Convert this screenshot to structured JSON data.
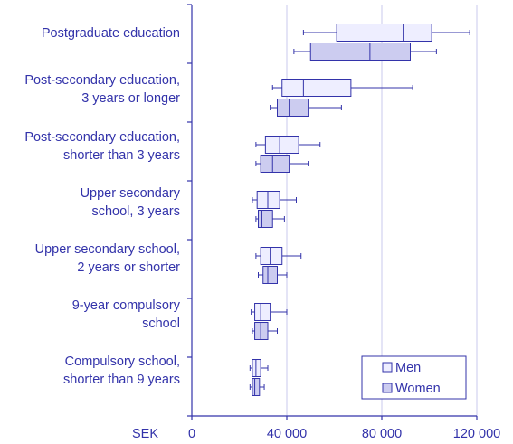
{
  "chart_data": {
    "type": "box",
    "orientation": "horizontal",
    "x_unit_label": "SEK",
    "xlim": [
      0,
      120000
    ],
    "x_ticks": [
      0,
      40000,
      80000,
      120000
    ],
    "x_tick_labels": [
      "0",
      "40 000",
      "80 000",
      "120 000"
    ],
    "grid": "vertical",
    "legend_position": "bottom-right",
    "categories": [
      [
        "Postgraduate education"
      ],
      [
        "Post-secondary education,",
        "3 years or longer"
      ],
      [
        "Post-secondary education,",
        "shorter than 3 years"
      ],
      [
        "Upper secondary",
        "school, 3 years"
      ],
      [
        "Upper secondary school,",
        "2 years or shorter"
      ],
      [
        "9-year compulsory",
        "school"
      ],
      [
        "Compulsory school,",
        "shorter than 9 years"
      ]
    ],
    "series": [
      {
        "name": "Men",
        "color": "#eeeeff",
        "boxes": [
          {
            "min": 47000,
            "q1": 61000,
            "median": 89000,
            "q3": 101000,
            "max": 117000
          },
          {
            "min": 34000,
            "q1": 38000,
            "median": 47000,
            "q3": 67000,
            "max": 93000
          },
          {
            "min": 27000,
            "q1": 31000,
            "median": 37000,
            "q3": 45000,
            "max": 54000
          },
          {
            "min": 25500,
            "q1": 27500,
            "median": 32000,
            "q3": 37000,
            "max": 44000
          },
          {
            "min": 27000,
            "q1": 29000,
            "median": 33000,
            "q3": 38000,
            "max": 46000
          },
          {
            "min": 25000,
            "q1": 26500,
            "median": 29000,
            "q3": 33000,
            "max": 40000
          },
          {
            "min": 24500,
            "q1": 25500,
            "median": 27000,
            "q3": 29000,
            "max": 32000
          }
        ]
      },
      {
        "name": "Women",
        "color": "#ccccf0",
        "boxes": [
          {
            "min": 43000,
            "q1": 50000,
            "median": 75000,
            "q3": 92000,
            "max": 103000
          },
          {
            "min": 33000,
            "q1": 36000,
            "median": 41000,
            "q3": 49000,
            "max": 63000
          },
          {
            "min": 27000,
            "q1": 29000,
            "median": 34000,
            "q3": 41000,
            "max": 49000
          },
          {
            "min": 27000,
            "q1": 28000,
            "median": 29500,
            "q3": 34000,
            "max": 39000
          },
          {
            "min": 28000,
            "q1": 30000,
            "median": 32000,
            "q3": 36000,
            "max": 40000
          },
          {
            "min": 25500,
            "q1": 26500,
            "median": 29000,
            "q3": 32000,
            "max": 36000
          },
          {
            "min": 24500,
            "q1": 25500,
            "median": 26500,
            "q3": 28500,
            "max": 30500
          }
        ]
      }
    ]
  }
}
